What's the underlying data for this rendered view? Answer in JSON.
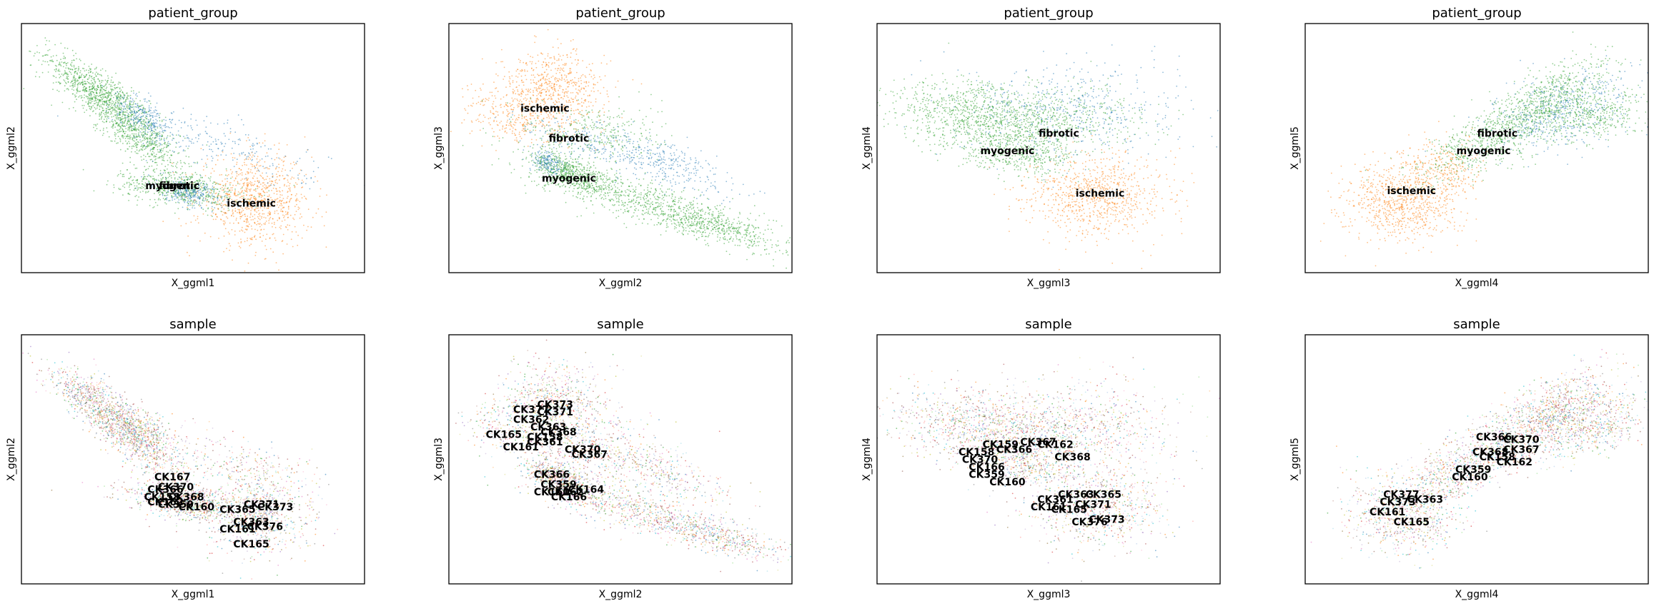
{
  "figure": {
    "panels": [
      {
        "title": "patient_group",
        "xlabel": "X_ggml1",
        "ylabel": "X_ggml2"
      },
      {
        "title": "patient_group",
        "xlabel": "X_ggml2",
        "ylabel": "X_ggml3"
      },
      {
        "title": "patient_group",
        "xlabel": "X_ggml3",
        "ylabel": "X_ggml4"
      },
      {
        "title": "patient_group",
        "xlabel": "X_ggml4",
        "ylabel": "X_ggml5"
      },
      {
        "title": "sample",
        "xlabel": "X_ggml1",
        "ylabel": "X_ggml2"
      },
      {
        "title": "sample",
        "xlabel": "X_ggml2",
        "ylabel": "X_ggml3"
      },
      {
        "title": "sample",
        "xlabel": "X_ggml3",
        "ylabel": "X_ggml4"
      },
      {
        "title": "sample",
        "xlabel": "X_ggml4",
        "ylabel": "X_ggml5"
      }
    ]
  },
  "colors": {
    "fibrotic": "#1f77b4",
    "ischemic": "#ff7f0e",
    "myogenic": "#2ca02c",
    "sample_palette": [
      "#1f77b4",
      "#ff7f0e",
      "#2ca02c",
      "#d62728",
      "#9467bd",
      "#8c564b",
      "#e377c2",
      "#7f7f7f",
      "#bcbd22",
      "#17becf",
      "#aec7e8",
      "#ffbb78",
      "#98df8a",
      "#ff9896",
      "#c5b0d5",
      "#c49c94",
      "#f7b6d2",
      "#dbdb8d",
      "#9edae5",
      "#ad494a",
      "#8c6d31"
    ]
  },
  "chart_data": [
    {
      "type": "scatter",
      "title": "patient_group",
      "xlabel": "X_ggml1",
      "ylabel": "X_ggml2",
      "grid": false,
      "series": [
        {
          "name": "fibrotic"
        },
        {
          "name": "ischemic"
        },
        {
          "name": "myogenic"
        }
      ],
      "labels": [
        {
          "text": "myogenic",
          "x": 0.44,
          "y": 0.35
        },
        {
          "text": "fibrotic",
          "x": 0.46,
          "y": 0.35
        },
        {
          "text": "ischemic",
          "x": 0.67,
          "y": 0.28
        }
      ]
    },
    {
      "type": "scatter",
      "title": "patient_group",
      "xlabel": "X_ggml2",
      "ylabel": "X_ggml3",
      "grid": false,
      "series": [
        {
          "name": "fibrotic"
        },
        {
          "name": "ischemic"
        },
        {
          "name": "myogenic"
        }
      ],
      "labels": [
        {
          "text": "ischemic",
          "x": 0.28,
          "y": 0.66
        },
        {
          "text": "fibrotic",
          "x": 0.35,
          "y": 0.54
        },
        {
          "text": "myogenic",
          "x": 0.35,
          "y": 0.38
        }
      ]
    },
    {
      "type": "scatter",
      "title": "patient_group",
      "xlabel": "X_ggml3",
      "ylabel": "X_ggml4",
      "grid": false,
      "series": [
        {
          "name": "fibrotic"
        },
        {
          "name": "ischemic"
        },
        {
          "name": "myogenic"
        }
      ],
      "labels": [
        {
          "text": "fibrotic",
          "x": 0.53,
          "y": 0.56
        },
        {
          "text": "myogenic",
          "x": 0.38,
          "y": 0.49
        },
        {
          "text": "ischemic",
          "x": 0.65,
          "y": 0.32
        }
      ]
    },
    {
      "type": "scatter",
      "title": "patient_group",
      "xlabel": "X_ggml4",
      "ylabel": "X_ggml5",
      "grid": false,
      "series": [
        {
          "name": "fibrotic"
        },
        {
          "name": "ischemic"
        },
        {
          "name": "myogenic"
        }
      ],
      "labels": [
        {
          "text": "fibrotic",
          "x": 0.56,
          "y": 0.56
        },
        {
          "text": "myogenic",
          "x": 0.52,
          "y": 0.49
        },
        {
          "text": "ischemic",
          "x": 0.31,
          "y": 0.33
        }
      ]
    },
    {
      "type": "scatter",
      "title": "sample",
      "xlabel": "X_ggml1",
      "ylabel": "X_ggml2",
      "grid": false,
      "labels": [
        {
          "text": "CK167",
          "x": 0.44,
          "y": 0.43
        },
        {
          "text": "CK366",
          "x": 0.42,
          "y": 0.38
        },
        {
          "text": "CK370",
          "x": 0.45,
          "y": 0.39
        },
        {
          "text": "CK158",
          "x": 0.41,
          "y": 0.35
        },
        {
          "text": "CK162",
          "x": 0.42,
          "y": 0.33
        },
        {
          "text": "CK368",
          "x": 0.48,
          "y": 0.35
        },
        {
          "text": "CK160",
          "x": 0.51,
          "y": 0.31
        },
        {
          "text": "CK359",
          "x": 0.45,
          "y": 0.32
        },
        {
          "text": "CK371",
          "x": 0.7,
          "y": 0.32
        },
        {
          "text": "CK373",
          "x": 0.74,
          "y": 0.31
        },
        {
          "text": "CK365",
          "x": 0.63,
          "y": 0.3
        },
        {
          "text": "CK363",
          "x": 0.67,
          "y": 0.25
        },
        {
          "text": "CK376",
          "x": 0.71,
          "y": 0.23
        },
        {
          "text": "CK161",
          "x": 0.63,
          "y": 0.22
        },
        {
          "text": "CK165",
          "x": 0.67,
          "y": 0.16
        }
      ]
    },
    {
      "type": "scatter",
      "title": "sample",
      "xlabel": "X_ggml2",
      "ylabel": "X_ggml3",
      "grid": false,
      "labels": [
        {
          "text": "CK373",
          "x": 0.31,
          "y": 0.72
        },
        {
          "text": "CK377",
          "x": 0.24,
          "y": 0.7
        },
        {
          "text": "CK371",
          "x": 0.31,
          "y": 0.69
        },
        {
          "text": "CK362",
          "x": 0.24,
          "y": 0.66
        },
        {
          "text": "CK363",
          "x": 0.29,
          "y": 0.63
        },
        {
          "text": "CK368",
          "x": 0.32,
          "y": 0.61
        },
        {
          "text": "CK165",
          "x": 0.16,
          "y": 0.6
        },
        {
          "text": "CK158",
          "x": 0.28,
          "y": 0.59
        },
        {
          "text": "CK361",
          "x": 0.28,
          "y": 0.57
        },
        {
          "text": "CK161",
          "x": 0.21,
          "y": 0.55
        },
        {
          "text": "CK370",
          "x": 0.39,
          "y": 0.54
        },
        {
          "text": "CK367",
          "x": 0.41,
          "y": 0.52
        },
        {
          "text": "CK366",
          "x": 0.3,
          "y": 0.44
        },
        {
          "text": "CK359",
          "x": 0.32,
          "y": 0.4
        },
        {
          "text": "CK164",
          "x": 0.4,
          "y": 0.38
        },
        {
          "text": "CK160",
          "x": 0.3,
          "y": 0.37
        },
        {
          "text": "CK162",
          "x": 0.34,
          "y": 0.37
        },
        {
          "text": "CK166",
          "x": 0.35,
          "y": 0.35
        }
      ]
    },
    {
      "type": "scatter",
      "title": "sample",
      "xlabel": "X_ggml3",
      "ylabel": "X_ggml4",
      "grid": false,
      "labels": [
        {
          "text": "CK159",
          "x": 0.36,
          "y": 0.56
        },
        {
          "text": "CK367",
          "x": 0.47,
          "y": 0.57
        },
        {
          "text": "CK162",
          "x": 0.52,
          "y": 0.56
        },
        {
          "text": "CK366",
          "x": 0.4,
          "y": 0.54
        },
        {
          "text": "CK158",
          "x": 0.29,
          "y": 0.53
        },
        {
          "text": "CK368",
          "x": 0.57,
          "y": 0.51
        },
        {
          "text": "CK370",
          "x": 0.3,
          "y": 0.5
        },
        {
          "text": "CK166",
          "x": 0.32,
          "y": 0.47
        },
        {
          "text": "CK359",
          "x": 0.32,
          "y": 0.44
        },
        {
          "text": "CK160",
          "x": 0.38,
          "y": 0.41
        },
        {
          "text": "CK363",
          "x": 0.58,
          "y": 0.36
        },
        {
          "text": "CK365",
          "x": 0.66,
          "y": 0.36
        },
        {
          "text": "CK361",
          "x": 0.52,
          "y": 0.34
        },
        {
          "text": "CK371",
          "x": 0.63,
          "y": 0.32
        },
        {
          "text": "CK161",
          "x": 0.5,
          "y": 0.31
        },
        {
          "text": "CK165",
          "x": 0.56,
          "y": 0.3
        },
        {
          "text": "CK373",
          "x": 0.67,
          "y": 0.26
        },
        {
          "text": "CK376",
          "x": 0.62,
          "y": 0.25
        }
      ]
    },
    {
      "type": "scatter",
      "title": "sample",
      "xlabel": "X_ggml4",
      "ylabel": "X_ggml5",
      "grid": false,
      "labels": [
        {
          "text": "CK366",
          "x": 0.55,
          "y": 0.59
        },
        {
          "text": "CK370",
          "x": 0.63,
          "y": 0.58
        },
        {
          "text": "CK367",
          "x": 0.63,
          "y": 0.54
        },
        {
          "text": "CK368",
          "x": 0.54,
          "y": 0.53
        },
        {
          "text": "CK158",
          "x": 0.56,
          "y": 0.51
        },
        {
          "text": "CK162",
          "x": 0.61,
          "y": 0.49
        },
        {
          "text": "CK359",
          "x": 0.49,
          "y": 0.46
        },
        {
          "text": "CK160",
          "x": 0.48,
          "y": 0.43
        },
        {
          "text": "CK363",
          "x": 0.35,
          "y": 0.34
        },
        {
          "text": "CK377",
          "x": 0.28,
          "y": 0.36
        },
        {
          "text": "CK373",
          "x": 0.27,
          "y": 0.33
        },
        {
          "text": "CK161",
          "x": 0.24,
          "y": 0.29
        },
        {
          "text": "CK165",
          "x": 0.31,
          "y": 0.25
        }
      ]
    }
  ]
}
